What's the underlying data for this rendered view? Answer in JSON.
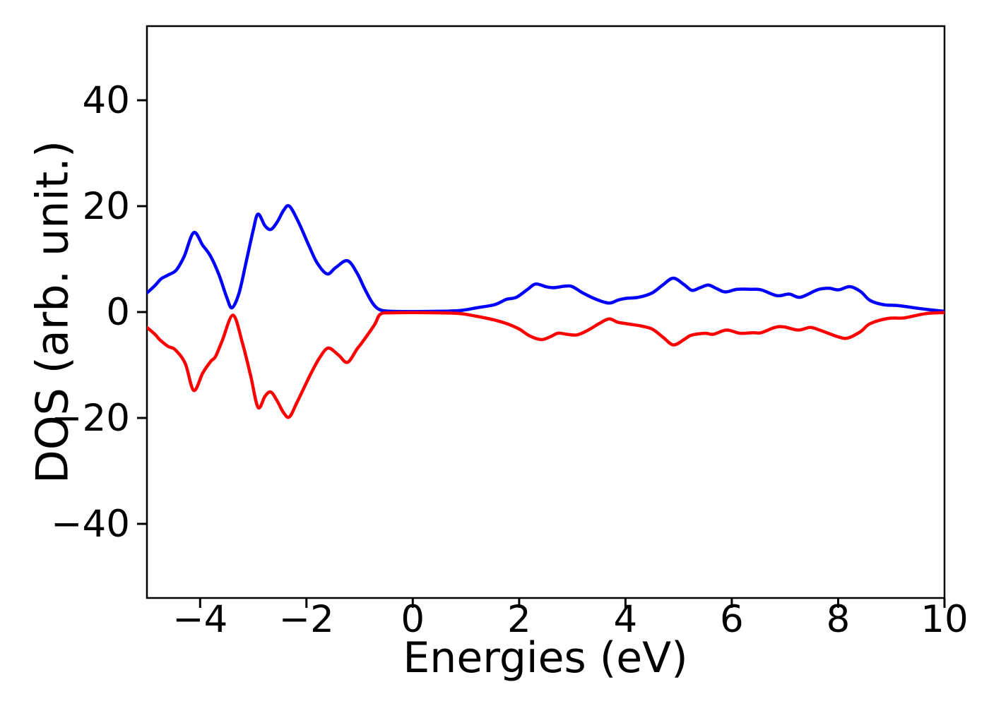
{
  "figure": {
    "background": "#ffffff",
    "axis_color": "#000000"
  },
  "chart_data": {
    "type": "line",
    "title": "",
    "xlabel": "Energies (eV)",
    "ylabel": "DOS (arb. unit.)",
    "xlim": [
      -5,
      10
    ],
    "ylim": [
      -54,
      54
    ],
    "grid": false,
    "legend": "none",
    "xticks": {
      "values": [
        -4,
        -2,
        0,
        2,
        4,
        6,
        8,
        10
      ],
      "labels": [
        "−4",
        "−2",
        "0",
        "2",
        "4",
        "6",
        "8",
        "10"
      ]
    },
    "yticks": {
      "values": [
        -40,
        -20,
        0,
        20,
        40
      ],
      "labels": [
        "−40",
        "−20",
        "0",
        "20",
        "40"
      ]
    },
    "series": [
      {
        "id": "blue-curve",
        "color": "#0000ff",
        "line_width": 4.5,
        "x": [
          -5.0,
          -4.85,
          -4.73,
          -4.6,
          -4.45,
          -4.3,
          -4.12,
          -3.95,
          -3.8,
          -3.64,
          -3.5,
          -3.4,
          -3.27,
          -3.15,
          -3.0,
          -2.91,
          -2.78,
          -2.67,
          -2.55,
          -2.43,
          -2.32,
          -2.15,
          -1.96,
          -1.8,
          -1.61,
          -1.45,
          -1.23,
          -1.05,
          -0.9,
          -0.75,
          -0.61,
          -0.4,
          0.0,
          0.5,
          0.9,
          1.2,
          1.54,
          1.76,
          1.95,
          2.16,
          2.31,
          2.5,
          2.64,
          2.87,
          3.0,
          3.2,
          3.45,
          3.69,
          3.87,
          4.02,
          4.25,
          4.5,
          4.7,
          4.9,
          5.1,
          5.25,
          5.4,
          5.56,
          5.72,
          5.88,
          6.1,
          6.35,
          6.55,
          6.85,
          7.08,
          7.29,
          7.61,
          7.82,
          8.01,
          8.22,
          8.42,
          8.6,
          8.85,
          9.15,
          9.5,
          9.75,
          10.0
        ],
        "y": [
          3.6,
          5.0,
          6.3,
          7.0,
          7.9,
          10.5,
          15.0,
          12.6,
          10.5,
          6.9,
          2.8,
          0.8,
          3.5,
          8.7,
          15.5,
          18.5,
          16.3,
          15.6,
          17.0,
          19.2,
          20.0,
          17.0,
          12.7,
          9.3,
          7.2,
          8.4,
          9.7,
          7.4,
          4.3,
          1.6,
          0.4,
          0.15,
          0.1,
          0.15,
          0.3,
          0.8,
          1.4,
          2.4,
          2.8,
          4.3,
          5.3,
          4.8,
          4.6,
          4.9,
          4.8,
          3.6,
          2.4,
          1.7,
          2.3,
          2.6,
          2.8,
          3.6,
          5.1,
          6.4,
          5.2,
          4.1,
          4.6,
          5.1,
          4.4,
          3.8,
          4.3,
          4.3,
          4.2,
          3.1,
          3.4,
          2.8,
          4.2,
          4.5,
          4.2,
          4.8,
          3.9,
          2.2,
          1.4,
          1.2,
          0.7,
          0.4,
          0.15
        ]
      },
      {
        "id": "red-curve",
        "color": "#ff0000",
        "line_width": 4.5,
        "x": [
          -5.0,
          -4.85,
          -4.75,
          -4.6,
          -4.47,
          -4.28,
          -4.12,
          -3.95,
          -3.8,
          -3.71,
          -3.58,
          -3.38,
          -3.2,
          -3.05,
          -2.91,
          -2.78,
          -2.67,
          -2.55,
          -2.43,
          -2.32,
          -2.18,
          -1.92,
          -1.75,
          -1.59,
          -1.4,
          -1.23,
          -1.05,
          -0.95,
          -0.72,
          -0.61,
          -0.4,
          0.0,
          0.5,
          0.9,
          1.2,
          1.54,
          1.8,
          2.0,
          2.2,
          2.42,
          2.6,
          2.73,
          2.9,
          3.09,
          3.3,
          3.5,
          3.69,
          3.85,
          4.02,
          4.28,
          4.5,
          4.7,
          4.9,
          5.1,
          5.23,
          5.5,
          5.65,
          5.9,
          6.15,
          6.4,
          6.55,
          6.81,
          6.98,
          7.25,
          7.47,
          7.65,
          8.01,
          8.18,
          8.42,
          8.6,
          8.94,
          9.24,
          9.64,
          10.0
        ],
        "y": [
          -2.9,
          -4.2,
          -5.3,
          -6.5,
          -7.1,
          -9.7,
          -14.8,
          -11.5,
          -9.3,
          -8.4,
          -5.3,
          -0.6,
          -6.0,
          -12.0,
          -18.0,
          -15.9,
          -15.1,
          -16.8,
          -19.0,
          -19.8,
          -17.1,
          -11.7,
          -8.6,
          -6.8,
          -8.1,
          -9.5,
          -7.0,
          -5.7,
          -2.4,
          -0.4,
          -0.15,
          -0.1,
          -0.15,
          -0.3,
          -0.8,
          -1.5,
          -2.3,
          -3.2,
          -4.5,
          -5.2,
          -4.6,
          -4.0,
          -4.2,
          -4.3,
          -3.4,
          -2.2,
          -1.3,
          -1.9,
          -2.2,
          -2.6,
          -3.2,
          -4.7,
          -6.2,
          -5.2,
          -4.4,
          -4.0,
          -4.2,
          -3.4,
          -4.0,
          -3.9,
          -3.9,
          -2.9,
          -2.8,
          -3.4,
          -2.9,
          -3.4,
          -4.7,
          -4.9,
          -3.7,
          -2.2,
          -1.2,
          -1.1,
          -0.3,
          -0.1
        ]
      }
    ]
  }
}
